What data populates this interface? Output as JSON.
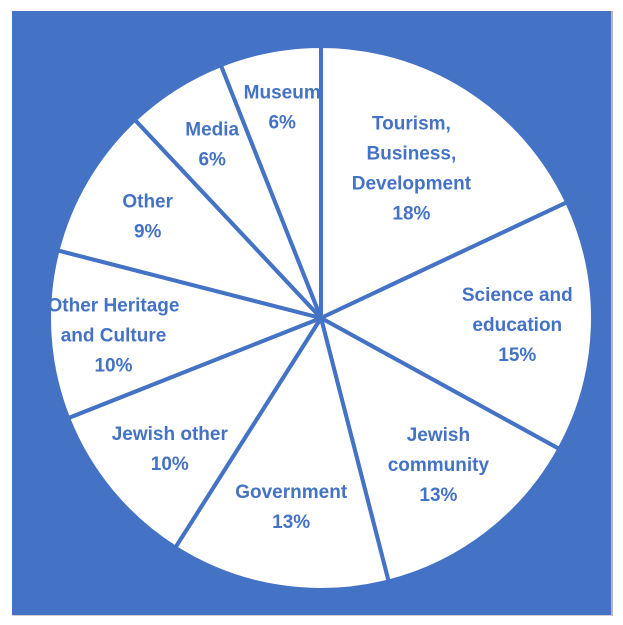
{
  "chart_data": {
    "type": "pie",
    "title": "",
    "categories": [
      "Tourism, Business, Development",
      "Science and education",
      "Jewish community",
      "Government",
      "Jewish other",
      "Other Heritage and Culture",
      "Other",
      "Media",
      "Museum"
    ],
    "values": [
      18,
      15,
      13,
      13,
      10,
      10,
      9,
      6,
      6
    ],
    "label_lines": [
      [
        "Tourism,",
        "Business,",
        "Development",
        "18%"
      ],
      [
        "Science and",
        "education",
        "15%"
      ],
      [
        "Jewish",
        "community",
        "13%"
      ],
      [
        "Government",
        "13%"
      ],
      [
        "Jewish other",
        "10%"
      ],
      [
        "Other Heritage",
        "and Culture",
        "10%"
      ],
      [
        "Other",
        "9%"
      ],
      [
        "Media",
        "6%"
      ],
      [
        "Museum",
        "6%"
      ]
    ],
    "legend": "none",
    "grid": false
  },
  "colors": {
    "background": "#4472C4",
    "slice_fill": "#FFFFFF",
    "slice_border": "#4472C4",
    "label_text": "#4472C4"
  }
}
